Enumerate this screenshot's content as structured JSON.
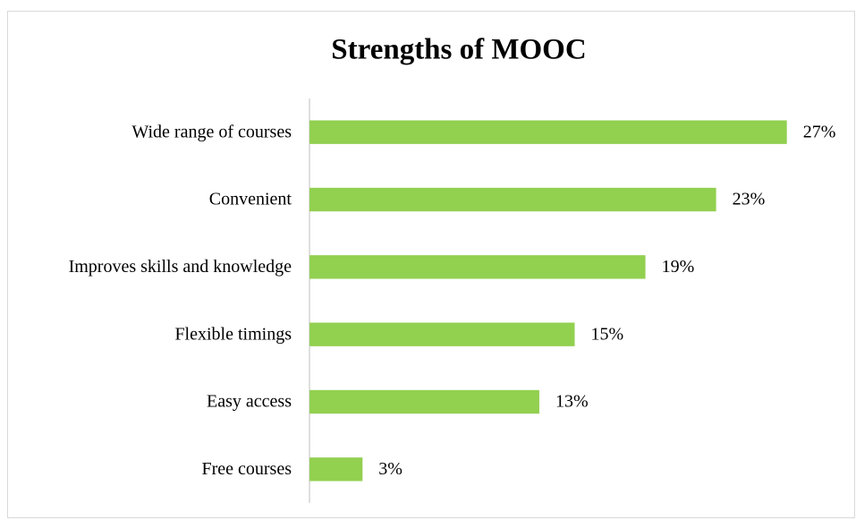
{
  "chart_data": {
    "type": "bar",
    "orientation": "horizontal",
    "title": "Strengths of MOOC",
    "categories": [
      "Wide range of courses",
      "Convenient",
      "Improves skills and knowledge",
      "Flexible timings",
      "Easy access",
      "Free courses"
    ],
    "values": [
      27,
      23,
      19,
      15,
      13,
      3
    ],
    "value_labels": [
      "27%",
      "23%",
      "19%",
      "15%",
      "13%",
      "3%"
    ],
    "color": "#92d050",
    "xlim": [
      0,
      30
    ]
  }
}
